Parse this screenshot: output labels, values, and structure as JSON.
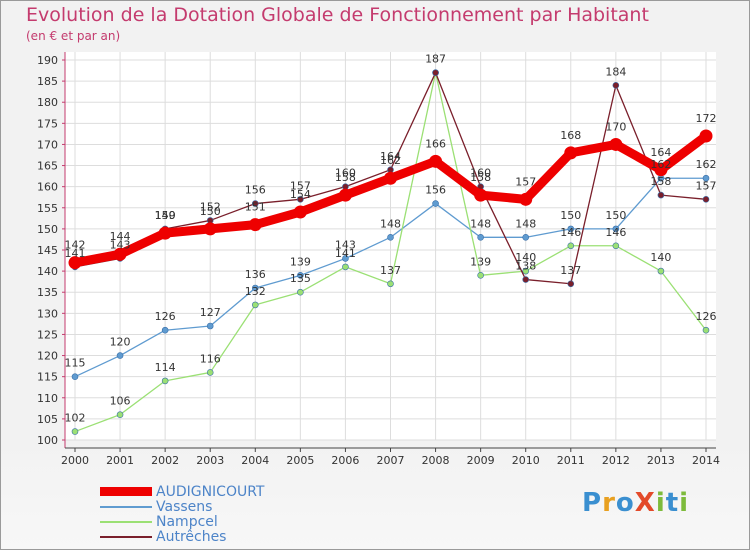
{
  "header": {
    "title": "Evolution de la Dotation Globale de Fonctionnement par Habitant",
    "subtitle": "(en € et par an)"
  },
  "colors": {
    "title": "#c43b6e",
    "axis_labels": "#333333",
    "grid": "#dddddd",
    "legend_text": "#4d84c8"
  },
  "logo": {
    "text": "ProXiti",
    "letter_colors": [
      "#3a8fd0",
      "#e8a020",
      "#3a8fd0",
      "#e34a2a",
      "#7dbb3b",
      "#3a8fd0",
      "#7dbb3b"
    ]
  },
  "chart_data": {
    "type": "line",
    "title": "Evolution de la Dotation Globale de Fonctionnement par Habitant",
    "subtitle": "(en € et par an)",
    "x": [
      "2000",
      "2001",
      "2002",
      "2003",
      "2004",
      "2005",
      "2006",
      "2007",
      "2008",
      "2009",
      "2010",
      "2011",
      "2012",
      "2013",
      "2014"
    ],
    "ylim": [
      100,
      190
    ],
    "ytick_step": 5,
    "grid": true,
    "legend_position": "bottom-left",
    "series": [
      {
        "name": "AUDIGNICOURT",
        "color": "#ee0000",
        "width": "thick",
        "values": [
          142,
          144,
          149,
          150,
          151,
          154,
          158,
          162,
          166,
          158,
          157,
          168,
          170,
          164,
          172
        ]
      },
      {
        "name": "Vassens",
        "color": "#5f9bd0",
        "width": "thin",
        "values": [
          115,
          120,
          126,
          127,
          136,
          139,
          143,
          148,
          156,
          148,
          148,
          150,
          150,
          162,
          162
        ]
      },
      {
        "name": "Nampcel",
        "color": "#9be074",
        "width": "thin",
        "values": [
          102,
          106,
          114,
          116,
          132,
          135,
          141,
          137,
          187,
          139,
          140,
          146,
          146,
          140,
          126
        ]
      },
      {
        "name": "Autrêches",
        "color": "#7a1f2b",
        "width": "thin",
        "values": [
          141,
          143,
          150,
          152,
          156,
          157,
          160,
          164,
          187,
          160,
          138,
          137,
          184,
          158,
          157
        ]
      }
    ],
    "data_labels": {
      "AUDIGNICOURT": [
        "142",
        "144",
        "149",
        "150",
        "151",
        "154",
        "158",
        "162",
        "166",
        "158",
        "157",
        "168",
        "170",
        "164",
        "172"
      ],
      "Vassens": [
        "115",
        "120",
        "126",
        "127",
        "136",
        "139",
        "143",
        "148",
        "156",
        "148",
        "148",
        "150",
        "150",
        "162",
        "162"
      ],
      "Nampcel": [
        "102",
        "106",
        "114",
        "116",
        "132",
        "135",
        "141",
        "137",
        "",
        "139",
        "140",
        "146",
        "146",
        "140",
        "126"
      ],
      "Autrêches": [
        "141",
        "143",
        "150",
        "152",
        "156",
        "157",
        "160",
        "164",
        "187",
        "160",
        "138",
        "137",
        "184",
        "158",
        "157"
      ]
    }
  }
}
